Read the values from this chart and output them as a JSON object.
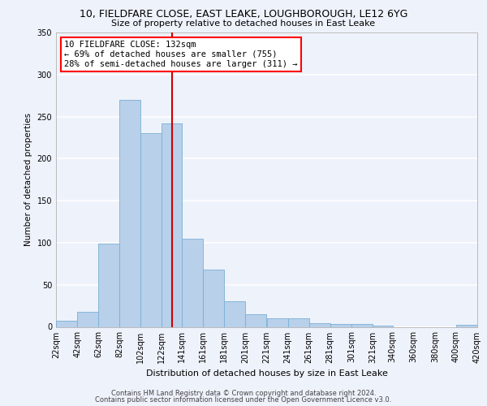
{
  "title_line1": "10, FIELDFARE CLOSE, EAST LEAKE, LOUGHBOROUGH, LE12 6YG",
  "title_line2": "Size of property relative to detached houses in East Leake",
  "xlabel": "Distribution of detached houses by size in East Leake",
  "ylabel": "Number of detached properties",
  "bar_left_edges": [
    22,
    42,
    62,
    82,
    102,
    122,
    141,
    161,
    181,
    201,
    221,
    241,
    261,
    281,
    301,
    321,
    340,
    360,
    380,
    400
  ],
  "bar_widths": [
    20,
    20,
    20,
    20,
    20,
    19,
    20,
    20,
    20,
    20,
    20,
    20,
    20,
    20,
    20,
    19,
    20,
    20,
    20,
    20
  ],
  "bar_heights": [
    7,
    18,
    99,
    270,
    230,
    242,
    105,
    68,
    30,
    15,
    10,
    10,
    4,
    3,
    3,
    1,
    0,
    0,
    0,
    2
  ],
  "bar_color": "#b8d0ea",
  "bar_edgecolor": "#7aafd4",
  "vline_x": 132,
  "vline_color": "#cc0000",
  "annotation_line1": "10 FIELDFARE CLOSE: 132sqm",
  "annotation_line2": "← 69% of detached houses are smaller (755)",
  "annotation_line3": "28% of semi-detached houses are larger (311) →",
  "annotation_fontsize": 7.5,
  "bg_color": "#eef2fb",
  "plot_bg_color": "#eef2fb",
  "grid_color": "#ffffff",
  "ylim": [
    0,
    350
  ],
  "xlim": [
    22,
    420
  ],
  "tick_labels": [
    "22sqm",
    "42sqm",
    "62sqm",
    "82sqm",
    "102sqm",
    "122sqm",
    "141sqm",
    "161sqm",
    "181sqm",
    "201sqm",
    "221sqm",
    "241sqm",
    "261sqm",
    "281sqm",
    "301sqm",
    "321sqm",
    "340sqm",
    "360sqm",
    "380sqm",
    "400sqm",
    "420sqm"
  ],
  "tick_positions": [
    22,
    42,
    62,
    82,
    102,
    122,
    141,
    161,
    181,
    201,
    221,
    241,
    261,
    281,
    301,
    321,
    340,
    360,
    380,
    400,
    420
  ],
  "footer_line1": "Contains HM Land Registry data © Crown copyright and database right 2024.",
  "footer_line2": "Contains public sector information licensed under the Open Government Licence v3.0.",
  "title1_fontsize": 9,
  "title2_fontsize": 8,
  "footer_fontsize": 6,
  "ylabel_fontsize": 7.5,
  "xlabel_fontsize": 8
}
